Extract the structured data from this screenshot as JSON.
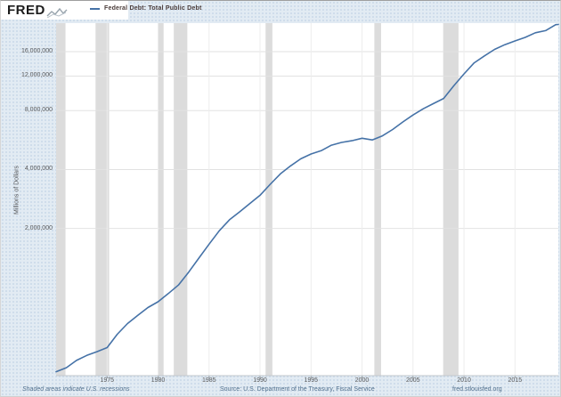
{
  "header": {
    "logo_text": "FRED",
    "legend_label": "Federal Debt: Total Public Debt"
  },
  "y_axis": {
    "title": "Millions of Dollars",
    "ticks": [
      {
        "value": 16000000,
        "label": "16,000,000"
      },
      {
        "value": 12000000,
        "label": "12,000,000"
      },
      {
        "value": 8000000,
        "label": "8,000,000"
      },
      {
        "value": 4000000,
        "label": "4,000,000"
      },
      {
        "value": 2000000,
        "label": "2,000,000"
      }
    ]
  },
  "x_axis": {
    "ticks": [
      {
        "year": 1975,
        "label": "1975"
      },
      {
        "year": 1980,
        "label": "1980"
      },
      {
        "year": 1985,
        "label": "1985"
      },
      {
        "year": 1990,
        "label": "1990"
      },
      {
        "year": 1995,
        "label": "1995"
      },
      {
        "year": 2000,
        "label": "2000"
      },
      {
        "year": 2005,
        "label": "2005"
      },
      {
        "year": 2010,
        "label": "2010"
      },
      {
        "year": 2015,
        "label": "2015"
      }
    ]
  },
  "footer": {
    "note": "Shaded areas indicate U.S. recessions",
    "source": "Source: U.S. Department of the Treasury, Fiscal Service",
    "site": "fred.stlouisfed.org"
  },
  "colors": {
    "line": "#4572a7",
    "recession_band": "#dcdcdc",
    "background": "#e2ebf3",
    "plot_background": "#ffffff",
    "gridline": "#e2e2e2",
    "vertical_gridline": "#ededed",
    "axis_line": "#c3c8cc",
    "tick_text": "#58595b",
    "footer_text": "#51708d"
  },
  "chart_data": {
    "type": "line",
    "title": "Federal Debt: Total Public Debt",
    "ylabel": "Millions of Dollars",
    "y_scale": "log",
    "grid": true,
    "legend_position": "top-left",
    "x_range": [
      1970.0,
      2019.25
    ],
    "y_ticks": [
      2000000,
      4000000,
      8000000,
      12000000,
      16000000
    ],
    "recessions": [
      [
        1969.92,
        1970.92
      ],
      [
        1973.87,
        1975.2
      ],
      [
        1980.04,
        1980.54
      ],
      [
        1981.54,
        1982.87
      ],
      [
        1990.54,
        1991.21
      ],
      [
        2001.21,
        2001.87
      ],
      [
        2007.96,
        2009.46
      ]
    ],
    "series": [
      {
        "name": "Federal Debt: Total Public Debt",
        "color": "#4572a7",
        "x": [
          1970.0,
          1971,
          1972,
          1973,
          1974,
          1975,
          1976,
          1977,
          1978,
          1979,
          1980,
          1981,
          1982,
          1983,
          1984,
          1985,
          1986,
          1987,
          1988,
          1989,
          1990,
          1991,
          1992,
          1993,
          1994,
          1995,
          1996,
          1997,
          1998,
          1999,
          2000,
          2001,
          2002,
          2003,
          2004,
          2005,
          2006,
          2007,
          2008,
          2009,
          2010,
          2011,
          2012,
          2013,
          2014,
          2015,
          2016,
          2017,
          2018,
          2019,
          2019.25
        ],
        "values": [
          371007,
          389158,
          424131,
          449298,
          469899,
          492665,
          576649,
          653544,
          718943,
          789207,
          845116,
          930210,
          1028729,
          1197073,
          1410702,
          1662966,
          1945941,
          2214834,
          2431715,
          2684392,
          2952994,
          3364820,
          3801698,
          4177009,
          4535687,
          4800150,
          4988665,
          5323172,
          5502388,
          5614217,
          5776091,
          5662216,
          5943439,
          6405707,
          7001312,
          7596143,
          8170424,
          8680224,
          9229172,
          10699805,
          12311350,
          14025215,
          15222940,
          16432730,
          17351970,
          18141444,
          18922179,
          19976827,
          20492747,
          21974096,
          22027558
        ]
      }
    ]
  }
}
